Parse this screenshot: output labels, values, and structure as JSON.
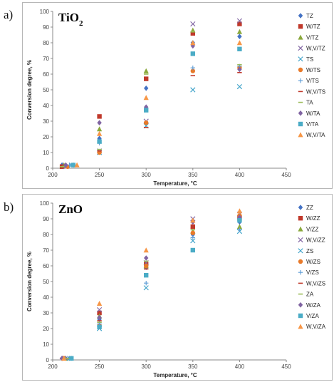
{
  "panel_labels": [
    "a)",
    "b)"
  ],
  "chart_data": [
    {
      "type": "scatter",
      "title": "TiO2",
      "title_main": "TiO",
      "title_sub": "2",
      "xlabel": "Temperature, °C",
      "ylabel": "Conversion degree, %",
      "xlim": [
        200,
        450
      ],
      "ylim": [
        0,
        100
      ],
      "xticks": [
        200,
        250,
        300,
        350,
        400,
        450
      ],
      "yticks": [
        0,
        10,
        20,
        30,
        40,
        50,
        60,
        70,
        80,
        90,
        100
      ],
      "grid": false,
      "legend_position": "right",
      "series": [
        {
          "name": "TZ",
          "marker": "diamond",
          "color": "#4472c4",
          "x": [
            210,
            250,
            300,
            350,
            400
          ],
          "y": [
            2,
            19,
            51,
            80,
            84
          ]
        },
        {
          "name": "W/TZ",
          "marker": "square",
          "color": "#c0392b",
          "x": [
            210,
            250,
            300,
            350,
            400
          ],
          "y": [
            1,
            33,
            57,
            86,
            92
          ]
        },
        {
          "name": "V/TZ",
          "marker": "triangle",
          "color": "#8aa83c",
          "x": [
            212,
            250,
            300,
            350,
            400
          ],
          "y": [
            2,
            25,
            62,
            88,
            87
          ]
        },
        {
          "name": "W,V/TZ",
          "marker": "x",
          "color": "#8064a2",
          "x": [
            214,
            250,
            300,
            350,
            400
          ],
          "y": [
            1,
            11,
            30,
            92,
            94
          ]
        },
        {
          "name": "TS",
          "marker": "x",
          "color": "#3aa0c8",
          "x": [
            220,
            250,
            300,
            350,
            400
          ],
          "y": [
            2,
            10,
            27,
            50,
            52
          ]
        },
        {
          "name": "W/TS",
          "marker": "circle",
          "color": "#e87a2a",
          "x": [
            216,
            250,
            300,
            350,
            400
          ],
          "y": [
            1,
            10,
            29,
            62,
            64
          ]
        },
        {
          "name": "V/TS",
          "marker": "plus",
          "color": "#5b9bd5",
          "x": [
            218,
            250,
            300,
            350,
            400
          ],
          "y": [
            2,
            16,
            38,
            64,
            65
          ]
        },
        {
          "name": "W,V/TS",
          "marker": "dash",
          "color": "#c0392b",
          "x": [
            212,
            250,
            300,
            350,
            400
          ],
          "y": [
            2,
            11,
            26,
            59,
            61
          ]
        },
        {
          "name": "TA",
          "marker": "dash",
          "color": "#9bbb59",
          "x": [
            210,
            250,
            300,
            350,
            400
          ],
          "y": [
            1,
            12,
            60,
            87,
            66
          ]
        },
        {
          "name": "W/TA",
          "marker": "diamond",
          "color": "#8064a2",
          "x": [
            214,
            250,
            300,
            350,
            400
          ],
          "y": [
            2,
            29,
            39,
            78,
            63
          ]
        },
        {
          "name": "V/TA",
          "marker": "square",
          "color": "#4bacc6",
          "x": [
            222,
            250,
            300,
            350,
            400
          ],
          "y": [
            2,
            17,
            37,
            73,
            76
          ]
        },
        {
          "name": "W,V/TA",
          "marker": "triangle",
          "color": "#f79646",
          "x": [
            226,
            250,
            300,
            350,
            400
          ],
          "y": [
            2,
            22,
            45,
            80,
            80
          ]
        }
      ]
    },
    {
      "type": "scatter",
      "title": "ZnO",
      "title_main": "ZnO",
      "title_sub": "",
      "xlabel": "Temperature, °C",
      "ylabel": "Conversion degree, %",
      "xlim": [
        200,
        450
      ],
      "ylim": [
        0,
        100
      ],
      "xticks": [
        200,
        250,
        300,
        350,
        400,
        450
      ],
      "yticks": [
        0,
        10,
        20,
        30,
        40,
        50,
        60,
        70,
        80,
        90,
        100
      ],
      "grid": false,
      "legend_position": "right",
      "series": [
        {
          "name": "ZZ",
          "marker": "diamond",
          "color": "#4472c4",
          "x": [
            210,
            250,
            300,
            350,
            400
          ],
          "y": [
            1,
            26,
            59,
            80,
            88
          ]
        },
        {
          "name": "W/ZZ",
          "marker": "square",
          "color": "#c0392b",
          "x": [
            212,
            250,
            300,
            350,
            400
          ],
          "y": [
            1,
            30,
            61,
            85,
            91
          ]
        },
        {
          "name": "V/ZZ",
          "marker": "triangle",
          "color": "#8aa83c",
          "x": [
            214,
            250,
            300,
            350,
            400
          ],
          "y": [
            1,
            28,
            60,
            82,
            85
          ]
        },
        {
          "name": "W,V/ZZ",
          "marker": "x",
          "color": "#8064a2",
          "x": [
            216,
            250,
            300,
            350,
            400
          ],
          "y": [
            1,
            32,
            62,
            90,
            93
          ]
        },
        {
          "name": "ZS",
          "marker": "x",
          "color": "#3aa0c8",
          "x": [
            218,
            250,
            300,
            350,
            400
          ],
          "y": [
            1,
            20,
            46,
            76,
            82
          ]
        },
        {
          "name": "W/ZS",
          "marker": "circle",
          "color": "#e87a2a",
          "x": [
            212,
            250,
            300,
            350,
            400
          ],
          "y": [
            1,
            22,
            60,
            81,
            92
          ]
        },
        {
          "name": "V/ZS",
          "marker": "plus",
          "color": "#5b9bd5",
          "x": [
            214,
            250,
            300,
            350,
            400
          ],
          "y": [
            1,
            23,
            49,
            78,
            83
          ]
        },
        {
          "name": "W,V/ZS",
          "marker": "dash",
          "color": "#c0392b",
          "x": [
            210,
            250,
            300,
            350,
            400
          ],
          "y": [
            1,
            25,
            58,
            84,
            90
          ]
        },
        {
          "name": "ZA",
          "marker": "dash",
          "color": "#9bbb59",
          "x": [
            216,
            250,
            300,
            350,
            400
          ],
          "y": [
            1,
            24,
            63,
            83,
            89
          ]
        },
        {
          "name": "W/ZA",
          "marker": "diamond",
          "color": "#8064a2",
          "x": [
            210,
            250,
            300,
            350,
            400
          ],
          "y": [
            1,
            27,
            65,
            88,
            91
          ]
        },
        {
          "name": "V/ZA",
          "marker": "square",
          "color": "#4bacc6",
          "x": [
            220,
            250,
            300,
            350,
            400
          ],
          "y": [
            1,
            21,
            54,
            70,
            89
          ]
        },
        {
          "name": "W,V/ZA",
          "marker": "triangle",
          "color": "#f79646",
          "x": [
            212,
            250,
            300,
            350,
            400
          ],
          "y": [
            1,
            36,
            70,
            89,
            95
          ]
        }
      ]
    }
  ]
}
